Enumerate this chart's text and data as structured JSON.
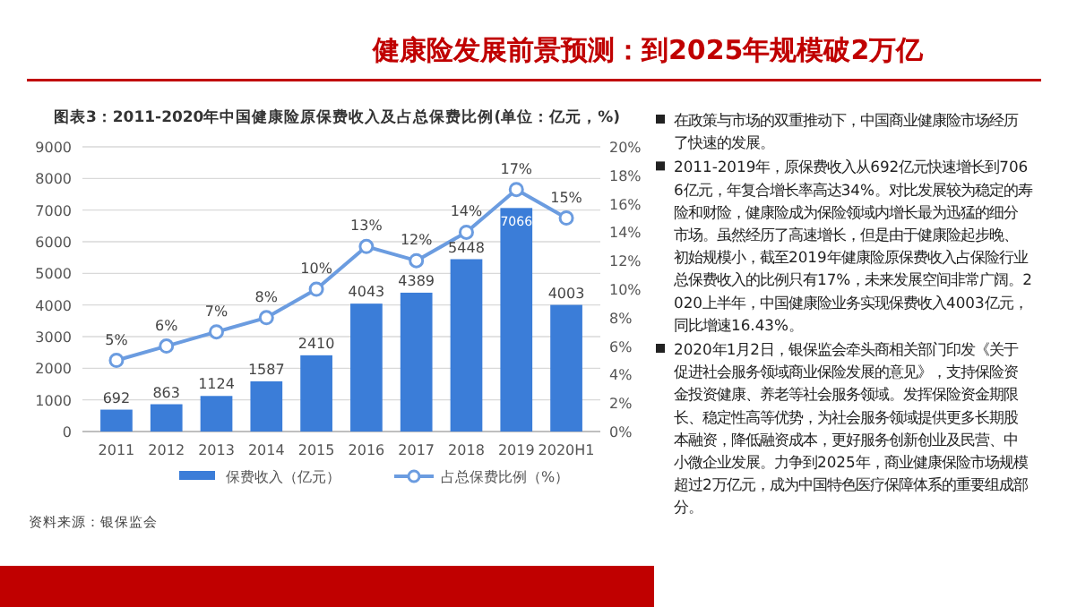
{
  "chart_data": {
    "type": "bar",
    "title": "健康险发展前景预测：到2025年规模破2万亿",
    "subtitle": "图表3：2011-2020年中国健康险原保费收入及占总保费比例(单位：亿元，%)",
    "categories": [
      "2011",
      "2012",
      "2013",
      "2014",
      "2015",
      "2016",
      "2017",
      "2018",
      "2019",
      "2020H1"
    ],
    "series": [
      {
        "name": "保费收入（亿元）",
        "color": "#3b7dd8",
        "values": [
          692,
          863,
          1124,
          1587,
          2410,
          4043,
          4389,
          5448,
          7066,
          4003
        ],
        "value_labels": [
          "692",
          "863",
          "1124",
          "1587",
          "2410",
          "4043",
          "4389",
          "5448",
          "7066",
          "4003"
        ]
      },
      {
        "name": "占总保费比例（%）",
        "type": "line",
        "axis": "y2",
        "color": "#6b9ce0",
        "marker": "circle",
        "values": [
          5,
          6,
          7,
          8,
          10,
          13,
          12,
          14,
          17,
          15
        ],
        "value_labels": [
          "5%",
          "6%",
          "7%",
          "8%",
          "10%",
          "13%",
          "12%",
          "14%",
          "17%",
          "15%"
        ]
      }
    ],
    "ylim": [
      0,
      9000
    ],
    "yticks": [
      0,
      1000,
      2000,
      3000,
      4000,
      5000,
      6000,
      7000,
      8000,
      9000
    ],
    "y2lim": [
      0,
      20
    ],
    "y2ticks": [
      {
        "value": 0,
        "label": "0%"
      },
      {
        "value": 2,
        "label": "2%"
      },
      {
        "value": 4,
        "label": "4%"
      },
      {
        "value": 6,
        "label": "6%"
      },
      {
        "value": 8,
        "label": "8%"
      },
      {
        "value": 10,
        "label": "10%"
      },
      {
        "value": 12,
        "label": "12%"
      },
      {
        "value": 14,
        "label": "14%"
      },
      {
        "value": 16,
        "label": "16%"
      },
      {
        "value": 18,
        "label": "18%"
      },
      {
        "value": 20,
        "label": "20%"
      }
    ],
    "grid": "y",
    "legend": "bottom",
    "annotations": [
      "资料来源：银保监会",
      "在政策与市场的双重推动下，中国商业健康险市场经历了快速的发展。",
      "2011-2019年，原保费收入从692亿元快速增长到7066亿元，年复合增长率高达34%。对比发展较为稳定的寿险和财险，健康险成为保险领域内增长最为迅猛的细分市场。虽然经历了高速增长，但是由于健康险起步晚、初始规模小，截至2019年健康险原保费收入占保险行业总保费收入的比例只有17%，未来发展空间非常广阔。2020上半年，中国健康险业务实现保费收入4003亿元，同比增速16.43%。",
      "2020年1月2日，银保监会牵头商相关部门印发《关于促进社会服务领域商业保险发展的意见》，支持保险资金投资健康、养老等社会服务领域。发挥保险资金期限长、稳定性高等优势，为社会服务领域提供更多长期股本融资，降低融资成本，更好服务创新创业及民营、中小微企业发展。力争到2025年，商业健康保险市场规模超过2万亿元，成为中国特色医疗保障体系的重要组成部分。"
    ]
  }
}
